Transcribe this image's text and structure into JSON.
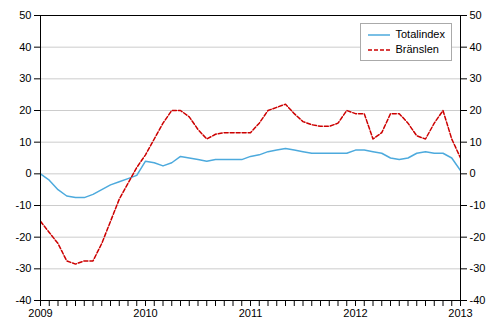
{
  "chart_data": {
    "type": "line",
    "categories": [
      "2009",
      null,
      null,
      null,
      null,
      null,
      null,
      null,
      null,
      null,
      null,
      null,
      "2010",
      null,
      null,
      null,
      null,
      null,
      null,
      null,
      null,
      null,
      null,
      null,
      "2011",
      null,
      null,
      null,
      null,
      null,
      null,
      null,
      null,
      null,
      null,
      null,
      "2012",
      null,
      null,
      null,
      null,
      null,
      null,
      null,
      null,
      null,
      null,
      null,
      "2013"
    ],
    "series": [
      {
        "name": "Totalindex",
        "color": "#4DAADD",
        "line_style": "solid",
        "values": [
          0.0,
          -2.0,
          -5.0,
          -7.0,
          -7.5,
          -7.5,
          -6.5,
          -5.0,
          -3.5,
          -2.5,
          -1.5,
          -0.5,
          4.0,
          3.5,
          2.5,
          3.5,
          5.5,
          5.0,
          4.5,
          4.0,
          4.5,
          4.5,
          4.5,
          4.5,
          5.5,
          6.0,
          7.0,
          7.5,
          8.0,
          7.5,
          7.0,
          6.5,
          6.5,
          6.5,
          6.5,
          6.5,
          7.5,
          7.5,
          7.0,
          6.5,
          5.0,
          4.5,
          5.0,
          6.5,
          7.0,
          6.5,
          6.5,
          5.0,
          1.0
        ]
      },
      {
        "name": "Bränslen",
        "color": "#CC0000",
        "line_style": "dashed",
        "axis": "y2",
        "values": [
          -15.0,
          -18.5,
          -22.0,
          -27.5,
          -28.5,
          -27.5,
          -27.5,
          -22.0,
          -15.0,
          -8.0,
          -3.0,
          2.0,
          6.0,
          11.0,
          16.0,
          20.0,
          20.0,
          18.0,
          14.0,
          11.0,
          12.5,
          13.0,
          13.0,
          13.0,
          13.0,
          16.0,
          20.0,
          21.0,
          22.0,
          19.0,
          16.5,
          15.5,
          15.0,
          15.0,
          16.0,
          20.0,
          19.0,
          19.0,
          11.0,
          13.0,
          19.0,
          19.0,
          16.0,
          12.0,
          11.0,
          16.0,
          20.0,
          11.0,
          5.0
        ]
      }
    ],
    "ylim": [
      -40,
      50
    ],
    "yticks": [
      -40,
      -30,
      -20,
      -10,
      0,
      10,
      20,
      30,
      40,
      50
    ],
    "y2lim": [
      -40,
      50
    ],
    "y2ticks": [
      -40,
      -30,
      -20,
      -10,
      0,
      10,
      20,
      30,
      40,
      50
    ],
    "grid": true,
    "legend": "upper right"
  }
}
